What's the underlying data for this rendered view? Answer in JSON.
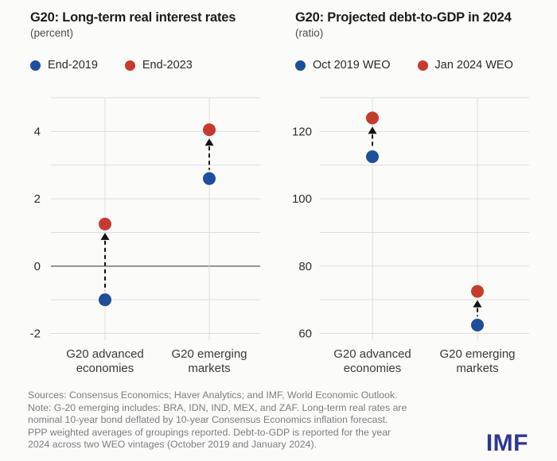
{
  "chart_data": [
    {
      "type": "scatter",
      "title": "G20: Long-term real interest rates",
      "subtitle": "(percent)",
      "categories": [
        [
          "G20 advanced",
          "economies"
        ],
        [
          "G20 emerging",
          "markets"
        ]
      ],
      "series": [
        {
          "name": "End-2019",
          "color": "#1f4e9c",
          "values": [
            -1.0,
            2.6
          ]
        },
        {
          "name": "End-2023",
          "color": "#c83a2e",
          "values": [
            1.25,
            4.05
          ]
        }
      ],
      "ylim": [
        -2.2,
        5.0
      ],
      "grid": {
        "start": -2,
        "end": 5,
        "step": 1
      },
      "labeled_ticks": [
        4,
        2,
        0,
        -2
      ],
      "zero_line": true,
      "grid_on": true,
      "legend_position": "top",
      "annotation": "dashed upward arrow from End-2019 dot to End-2023 dot in each category"
    },
    {
      "type": "scatter",
      "title": "G20: Projected debt-to-GDP in 2024",
      "subtitle": "(ratio)",
      "categories": [
        [
          "G20 advanced",
          "economies"
        ],
        [
          "G20 emerging",
          "markets"
        ]
      ],
      "series": [
        {
          "name": "Oct 2019 WEO",
          "color": "#1f4e9c",
          "values": [
            112.5,
            62.5
          ]
        },
        {
          "name": "Jan 2024 WEO",
          "color": "#c83a2e",
          "values": [
            124,
            72.5
          ]
        }
      ],
      "ylim": [
        58,
        130
      ],
      "grid": {
        "start": 60,
        "end": 130,
        "step": 10
      },
      "labeled_ticks": [
        120,
        100,
        80,
        60
      ],
      "zero_line": false,
      "grid_on": true,
      "legend_position": "top",
      "annotation": "dashed upward arrow from Oct 2019 WEO dot to Jan 2024 WEO dot in each category"
    }
  ],
  "footer": {
    "lines": [
      "Sources: Consensus Economics; Haver Analytics; and IMF, World Economic Outlook.",
      "Note: G-20 emerging includes: BRA, IDN, IND, MEX, and ZAF. Long-term real rates are",
      "nominal 10-year bond deflated by 10-year Consensus Economics inflation forecast.",
      "PPP weighted averages of groupings reported. Debt-to-GDP is reported for the year",
      "2024 across two WEO vintages (October 2019 and January 2024)."
    ],
    "logo": "IMF"
  },
  "colors": {
    "blue": "#1f4e9c",
    "red": "#c83a2e",
    "grid": "#dcdcda",
    "zero_line": "#7d7d7d",
    "arrow": "#121212",
    "logo": "#2b3990",
    "background": "#fbfbf9"
  }
}
